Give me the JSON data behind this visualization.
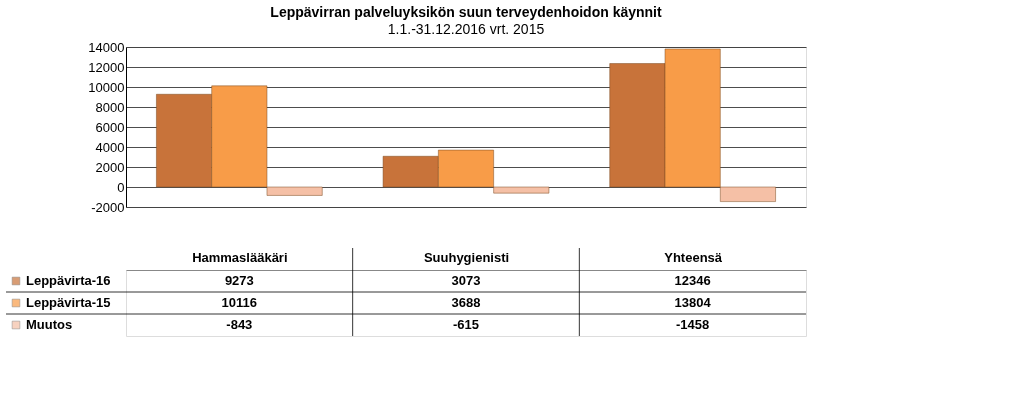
{
  "chart_data": {
    "type": "bar",
    "title": "Leppävirran palveluyksikön suun terveydenhoidon käynnit",
    "subtitle": "1.1.-31.12.2016 vrt. 2015",
    "categories": [
      "Hammaslääkäri",
      "Suuhygienisti",
      "Yhteensä"
    ],
    "series": [
      {
        "name": "Leppävirta-16",
        "color": "#c8733a",
        "values": [
          9273,
          3073,
          12346
        ]
      },
      {
        "name": "Leppävirta-15",
        "color": "#f89c48",
        "values": [
          10116,
          3688,
          13804
        ]
      },
      {
        "name": "Muutos",
        "color": "#f5c0a6",
        "values": [
          -843,
          -615,
          -1458
        ]
      }
    ],
    "ylim": [
      -2000,
      14000
    ],
    "yticks": [
      -2000,
      0,
      2000,
      4000,
      6000,
      8000,
      10000,
      12000,
      14000
    ],
    "grid": "y",
    "data_labels": true,
    "legend": "bottom left"
  }
}
